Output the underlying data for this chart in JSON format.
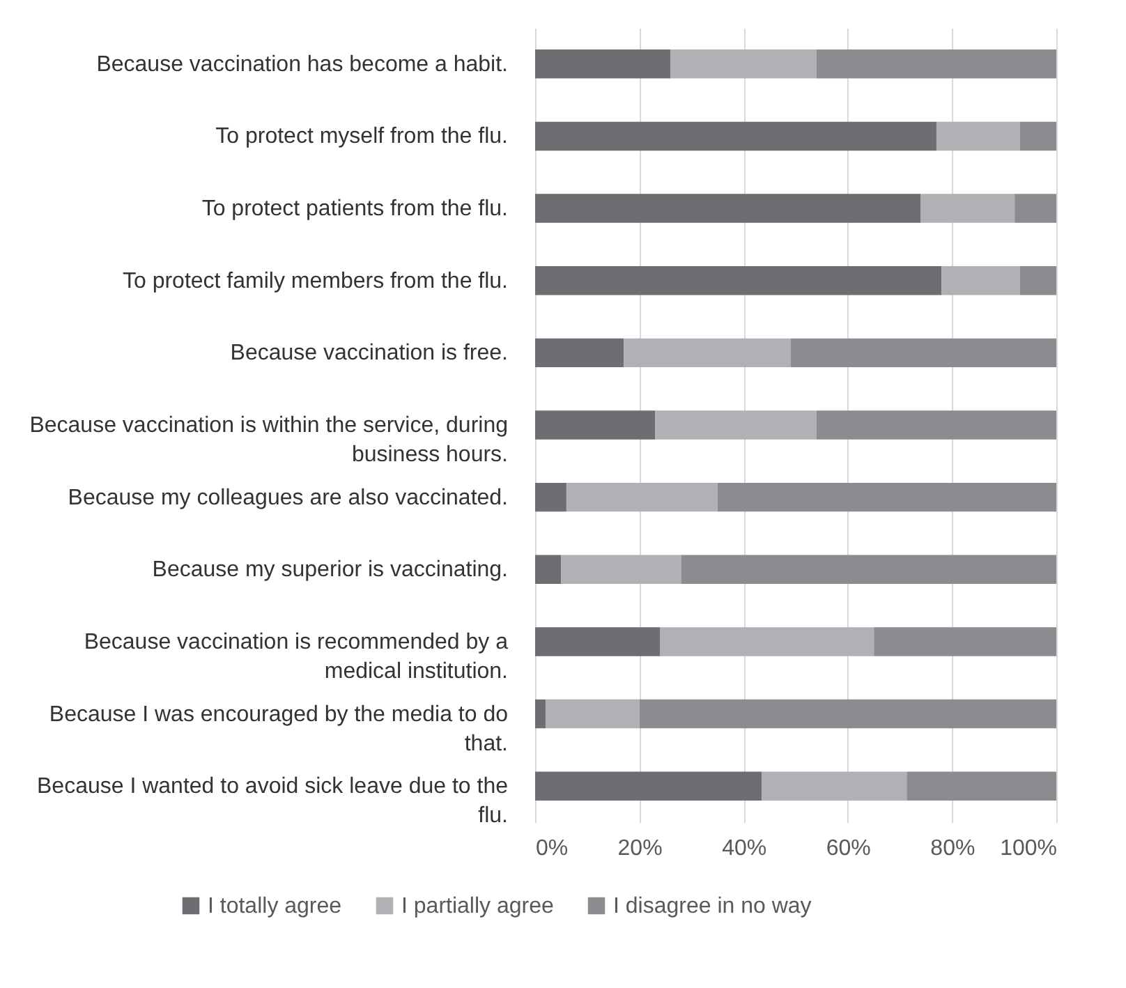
{
  "chart_data": {
    "type": "bar",
    "orientation": "horizontal",
    "stacked": true,
    "categories": [
      "Because vaccination has become a habit.",
      "To protect myself from the flu.",
      "To protect patients from the flu.",
      "To protect family members from the flu.",
      "Because vaccination is free.",
      "Because vaccination is within the service, during business hours.",
      "Because my colleagues are also vaccinated.",
      "Because my superior is vaccinating.",
      "Because vaccination is recommended by a medical institution.",
      "Because I was encouraged by the media to do that.",
      "Because I wanted to avoid sick leave due to the flu."
    ],
    "series": [
      {
        "name": "I totally agree",
        "color": "#6d6e71",
        "values": [
          26,
          77,
          74,
          78,
          17,
          23,
          6,
          5,
          24,
          2,
          43.5
        ]
      },
      {
        "name": "I partially agree",
        "color": "#b0b1b4",
        "values": [
          28,
          16,
          18,
          15,
          32,
          31,
          29,
          23,
          41,
          18,
          27.8
        ]
      },
      {
        "name": "I disagree in no way",
        "color": "#8b8c8f",
        "values": [
          46,
          7,
          8,
          7,
          51,
          46,
          65,
          72,
          35,
          80,
          28.7
        ]
      }
    ],
    "xlim": [
      0,
      100
    ],
    "xticks": [
      {
        "value": 0,
        "label": "0%"
      },
      {
        "value": 20,
        "label": "20%"
      },
      {
        "value": 40,
        "label": "40%"
      },
      {
        "value": 60,
        "label": "60%"
      },
      {
        "value": 80,
        "label": "80%"
      },
      {
        "value": 100,
        "label": "100%"
      }
    ],
    "grid": "x",
    "legend": "bottom"
  }
}
